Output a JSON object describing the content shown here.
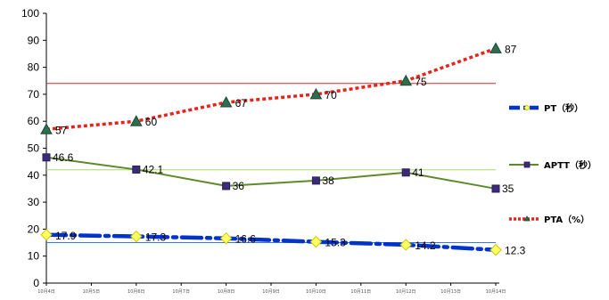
{
  "chart_data": {
    "type": "line",
    "categories": [
      "10月4日",
      "10月5日",
      "10月6日",
      "10月7日",
      "10月8日",
      "10月9日",
      "10月10日",
      "10月11日",
      "10月12日",
      "10月13日",
      "10月14日"
    ],
    "ylim": [
      0,
      100
    ],
    "yticks": [
      "0",
      "10",
      "20",
      "30",
      "40",
      "50",
      "60",
      "70",
      "80",
      "90",
      "100"
    ],
    "series": [
      {
        "name": "PT（秒）",
        "color": "#0033cc",
        "marker_color": "#ffff66",
        "x": [
          "10月4日",
          "10月6日",
          "10月8日",
          "10月10日",
          "10月12日",
          "10月14日"
        ],
        "values": [
          17.9,
          17.3,
          16.6,
          15.3,
          14.2,
          12.3
        ],
        "labels": [
          "17.9",
          "17.3",
          "16.6",
          "15.3",
          "14.2",
          "12.3"
        ]
      },
      {
        "name": "APTT（秒）",
        "color": "#5f8a2a",
        "marker_color": "#3d2b7a",
        "x": [
          "10月4日",
          "10月6日",
          "10月8日",
          "10月10日",
          "10月12日",
          "10月14日"
        ],
        "values": [
          46.6,
          42.1,
          36,
          38,
          41,
          35
        ],
        "labels": [
          "46.6",
          "42.1",
          "36",
          "38",
          "41",
          "35"
        ]
      },
      {
        "name": "PTA（%）",
        "color": "#e8231a",
        "marker_color": "#2d6e4e",
        "x": [
          "10月4日",
          "10月6日",
          "10月8日",
          "10月10日",
          "10月12日",
          "10月14日"
        ],
        "values": [
          57,
          60,
          67,
          70,
          75,
          87
        ],
        "labels": [
          "57",
          "60",
          "67",
          "70",
          "75",
          "87"
        ]
      }
    ],
    "reference_lines": [
      {
        "value": 74,
        "color": "#e8231a"
      },
      {
        "value": 42,
        "color": "#a8d870"
      },
      {
        "value": 15,
        "color": "#3a7bd5"
      }
    ],
    "legend": "right",
    "grid": false
  }
}
